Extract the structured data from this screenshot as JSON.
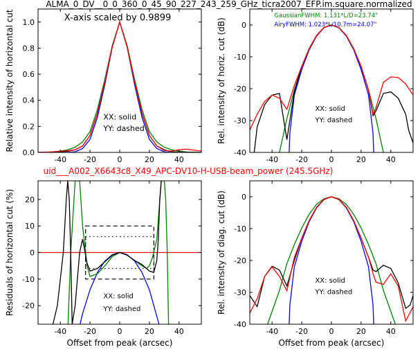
{
  "figure": {
    "title": "ALMA_0_DV__0_0_360_0_45_90_227_243_259_GHz_ticra2007_EFP.im.square.normalized",
    "subtitle": "uid___A002_X6643c8_X49_APC-DV10-H-USB-beam_power (245.5GHz)",
    "subtitle_color": "#ff0000"
  },
  "colors": {
    "black": "#000000",
    "red": "#ff0000",
    "blue": "#0000ff",
    "green": "#008000"
  },
  "chart_data": [
    {
      "id": "top-left",
      "type": "line",
      "ylabel": "Relative intensity of horizontal cut",
      "xlabel": "",
      "xlim": [
        -55,
        55
      ],
      "ylim": [
        0,
        1.1
      ],
      "xticks": [
        -40,
        -20,
        0,
        20,
        40
      ],
      "yticks": [
        0.0,
        0.2,
        0.4,
        0.6,
        0.8,
        1.0
      ],
      "ytick_labels": [
        "0.0",
        "0.2",
        "0.4",
        "0.6",
        "0.8",
        "1.0"
      ],
      "annotations": [
        "X-axis scaled by 0.9899",
        "XX: solid",
        "YY: dashed"
      ],
      "series": [
        {
          "color": "#008000",
          "x": [
            -55,
            -45,
            -40,
            -35,
            -30,
            -25,
            -20,
            -15,
            -10,
            -5,
            0,
            5,
            10,
            15,
            20,
            25,
            30,
            35,
            40,
            45,
            55
          ],
          "y": [
            0,
            0.003,
            0.01,
            0.02,
            0.04,
            0.08,
            0.16,
            0.33,
            0.56,
            0.82,
            1.0,
            0.82,
            0.56,
            0.33,
            0.16,
            0.08,
            0.04,
            0.02,
            0.01,
            0.003,
            0
          ]
        },
        {
          "color": "#0000ff",
          "x": [
            -55,
            -35,
            -30,
            -25,
            -20,
            -15,
            -10,
            -5,
            0,
            5,
            10,
            15,
            20,
            25,
            30,
            35,
            55
          ],
          "y": [
            0,
            0,
            0.005,
            0.03,
            0.1,
            0.27,
            0.52,
            0.81,
            1.0,
            0.81,
            0.52,
            0.27,
            0.1,
            0.03,
            0.005,
            0,
            0
          ]
        },
        {
          "color": "#000000",
          "x": [
            -55,
            -45,
            -40,
            -35,
            -30,
            -25,
            -20,
            -15,
            -10,
            -5,
            0,
            5,
            10,
            15,
            20,
            25,
            30,
            35,
            40,
            45,
            55
          ],
          "y": [
            0,
            0.002,
            0.005,
            0.008,
            0.02,
            0.05,
            0.13,
            0.3,
            0.54,
            0.81,
            1.0,
            0.81,
            0.54,
            0.3,
            0.13,
            0.05,
            0.02,
            0.005,
            0.003,
            0.002,
            0
          ]
        },
        {
          "color": "#ff0000",
          "x": [
            -55,
            -45,
            -40,
            -35,
            -30,
            -25,
            -20,
            -15,
            -10,
            -5,
            0,
            5,
            10,
            15,
            20,
            25,
            30,
            35,
            40,
            45,
            55
          ],
          "y": [
            0,
            0.005,
            0.01,
            0.012,
            0.02,
            0.05,
            0.13,
            0.3,
            0.54,
            0.81,
            1.0,
            0.81,
            0.54,
            0.3,
            0.13,
            0.05,
            0.015,
            0.01,
            0.02,
            0.025,
            0.01
          ]
        }
      ]
    },
    {
      "id": "top-right",
      "type": "line",
      "ylabel": "Rel. intensity of horiz. cut (dB)",
      "xlabel": "",
      "xlim": [
        -55,
        55
      ],
      "ylim": [
        -40,
        5
      ],
      "xticks": [
        -40,
        -20,
        0,
        20,
        40
      ],
      "yticks": [
        0,
        -10,
        -20,
        -30,
        -40
      ],
      "annotations": [
        "XX: solid",
        "YY: dashed"
      ],
      "legend": [
        {
          "text": "GaussianFWHM: 1.131*L/D=23.74\"",
          "color": "#008000"
        },
        {
          "text": "AiryFWHM: 1.023*L/10.7m=24.07\"",
          "color": "#0000ff"
        }
      ],
      "series": [
        {
          "color": "#008000",
          "x": [
            -35,
            -30,
            -25,
            -20,
            -15,
            -10,
            -5,
            0,
            5,
            10,
            15,
            20,
            25,
            30,
            35
          ],
          "y": [
            -40,
            -29.4,
            -20.4,
            -13.1,
            -7.4,
            -3.3,
            -0.8,
            0,
            -0.8,
            -3.3,
            -7.4,
            -13.1,
            -20.4,
            -29.4,
            -40
          ]
        },
        {
          "color": "#0000ff",
          "x": [
            -28.5,
            -28,
            -25,
            -20,
            -15,
            -10,
            -5,
            0,
            5,
            10,
            15,
            20,
            25,
            28,
            28.5
          ],
          "y": [
            -40,
            -34,
            -22,
            -14,
            -7.8,
            -3.5,
            -0.9,
            0,
            -0.9,
            -3.5,
            -7.8,
            -14,
            -22,
            -34,
            -40
          ]
        },
        {
          "color": "#000000",
          "x": [
            -52,
            -50,
            -45,
            -40,
            -35,
            -30,
            -25,
            -20,
            -15,
            -10,
            -5,
            0,
            5,
            10,
            15,
            20,
            25,
            28,
            30,
            35,
            40,
            45,
            50,
            52,
            55
          ],
          "y": [
            -40,
            -32,
            -25,
            -22,
            -21.5,
            -36,
            -21,
            -13,
            -7.5,
            -3.3,
            -0.8,
            0,
            -0.8,
            -3.3,
            -7.5,
            -13,
            -20.5,
            -28.5,
            -27,
            -21.5,
            -21,
            -23,
            -28,
            -33,
            -37
          ]
        },
        {
          "color": "#ff0000",
          "x": [
            -55,
            -50,
            -45,
            -40,
            -35,
            -30,
            -25,
            -20,
            -15,
            -10,
            -5,
            0,
            5,
            10,
            15,
            20,
            25,
            28,
            30,
            35,
            40,
            45,
            50,
            55
          ],
          "y": [
            -33,
            -28,
            -24,
            -22,
            -23,
            -26.5,
            -19,
            -13,
            -7.5,
            -3.3,
            -0.8,
            0,
            -0.8,
            -3.3,
            -7.5,
            -13,
            -20.5,
            -28,
            -26,
            -18,
            -16.3,
            -16.5,
            -18.5,
            -22
          ]
        }
      ]
    },
    {
      "id": "bottom-left",
      "type": "line",
      "ylabel": "Residuals of horizontal cut (%)",
      "xlabel": "Offset from peak (arcsec)",
      "xlim": [
        -55,
        55
      ],
      "ylim": [
        -27,
        27
      ],
      "xticks": [
        -40,
        -20,
        0,
        20,
        40
      ],
      "yticks": [
        20,
        10,
        0,
        -10,
        -20
      ],
      "annotations": [
        "XX: solid",
        "YY: dashed"
      ],
      "series": [
        {
          "color": "#ff0000",
          "x": [
            -55,
            55
          ],
          "y": [
            0,
            0
          ]
        },
        {
          "color": "#0000ff",
          "x": [
            -28,
            -25,
            -20,
            -15,
            -10,
            -5,
            0,
            5,
            10,
            15,
            20,
            23,
            25,
            28
          ],
          "y": [
            -30,
            -23,
            -14,
            -7.5,
            -3.2,
            -0.8,
            0,
            -0.8,
            -3.2,
            -7.5,
            -14,
            -20,
            -24,
            -30
          ]
        },
        {
          "color": "#008000",
          "x": [
            -35,
            -33,
            -30,
            -27,
            -25,
            -22,
            -20,
            -15,
            -10,
            -5,
            0,
            5,
            10,
            15,
            18,
            20,
            22,
            25,
            28,
            30,
            31,
            32,
            33
          ],
          "y": [
            -30,
            0,
            27,
            27,
            10,
            -5,
            -9,
            -8,
            -5,
            -1.5,
            0,
            -1,
            -3,
            -5,
            -6,
            -5,
            -2,
            5,
            27,
            27,
            20,
            0,
            -30
          ]
        },
        {
          "color": "#000000",
          "x": [
            -45,
            -42,
            -38,
            -36,
            -35,
            -34,
            -33,
            -32,
            -30,
            -27,
            -25,
            -22,
            -20,
            -15,
            -10,
            -5,
            0,
            5,
            10,
            15,
            20,
            23,
            25,
            26,
            27,
            28
          ],
          "y": [
            -27,
            -20,
            0,
            20,
            27,
            20,
            0,
            -27,
            -20,
            0,
            5,
            -4,
            -7,
            -6,
            -3.5,
            -1,
            0,
            -1,
            -3,
            -4.5,
            -7,
            -7.5,
            -3,
            5,
            20,
            27
          ]
        }
      ],
      "boxes": [
        {
          "style": "dashed",
          "x": [
            -23,
            23
          ],
          "y": [
            -10,
            10
          ]
        },
        {
          "style": "dotted",
          "x": [
            -23,
            23
          ],
          "y": [
            -6,
            6
          ]
        }
      ]
    },
    {
      "id": "bottom-right",
      "type": "line",
      "ylabel": "Rel. intensity of diag. cut (dB)",
      "xlabel": "Offset from peak (arcsec)",
      "xlim": [
        -55,
        55
      ],
      "ylim": [
        -40,
        5
      ],
      "xticks": [
        -40,
        -20,
        0,
        20,
        40
      ],
      "yticks": [
        0,
        -10,
        -20,
        -30,
        -40
      ],
      "annotations": [
        "XX: solid",
        "YY: dashed"
      ],
      "series": [
        {
          "color": "#008000",
          "x": [
            -43,
            -35,
            -30,
            -25,
            -20,
            -15,
            -10,
            -5,
            0,
            5,
            10,
            15,
            20,
            25,
            30,
            35,
            43
          ],
          "y": [
            -40,
            -29.4,
            -21,
            -15,
            -9.8,
            -5.5,
            -2.4,
            -0.6,
            0,
            -0.6,
            -2.4,
            -5.5,
            -9.8,
            -15,
            -21,
            -29.4,
            -40
          ]
        },
        {
          "color": "#0000ff",
          "x": [
            -28.5,
            -28,
            -25,
            -20,
            -15,
            -10,
            -5,
            0,
            5,
            10,
            15,
            20,
            25,
            28,
            28.5
          ],
          "y": [
            -40,
            -34,
            -22,
            -14,
            -7.8,
            -3.5,
            -0.9,
            0,
            -0.9,
            -3.5,
            -7.8,
            -14,
            -22,
            -34,
            -40
          ]
        },
        {
          "color": "#000000",
          "x": [
            -55,
            -50,
            -45,
            -40,
            -35,
            -30,
            -25,
            -20,
            -15,
            -10,
            -5,
            0,
            5,
            10,
            15,
            20,
            25,
            28,
            30,
            35,
            40,
            45,
            50,
            53,
            55
          ],
          "y": [
            -31,
            -34.5,
            -25,
            -21.8,
            -23,
            -28,
            -20,
            -13,
            -7.5,
            -3.3,
            -0.8,
            0,
            -0.8,
            -3.3,
            -7.5,
            -13,
            -19,
            -23,
            -23.5,
            -21.5,
            -22.5,
            -27,
            -35,
            -34,
            -31
          ]
        },
        {
          "color": "#ff0000",
          "x": [
            -55,
            -50,
            -45,
            -40,
            -35,
            -30,
            -25,
            -20,
            -15,
            -10,
            -5,
            0,
            5,
            10,
            15,
            20,
            25,
            28,
            30,
            35,
            40,
            45,
            50,
            55
          ],
          "y": [
            -36.5,
            -32,
            -25,
            -22,
            -25,
            -29.5,
            -19,
            -13,
            -7.5,
            -3.3,
            -0.8,
            0,
            -0.8,
            -3.3,
            -7.5,
            -13,
            -19,
            -24,
            -26.8,
            -27.5,
            -24.2,
            -28,
            -39,
            -34.5
          ]
        }
      ]
    }
  ]
}
